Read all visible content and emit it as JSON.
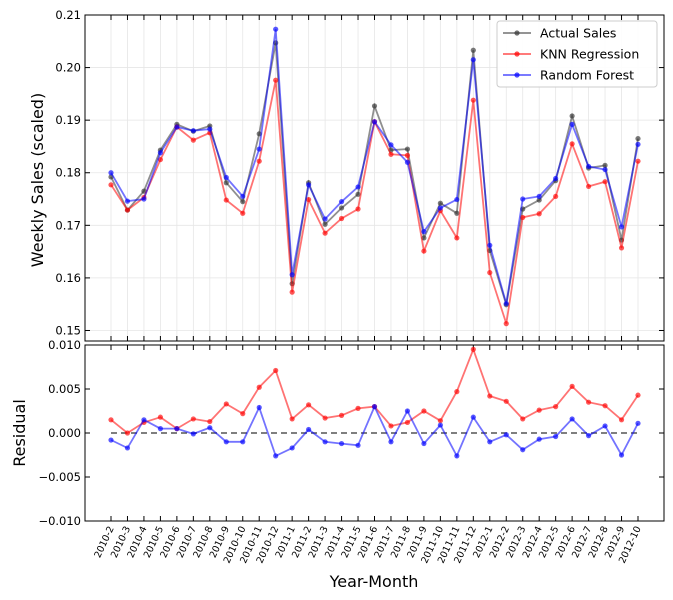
{
  "chart_data": [
    {
      "type": "line",
      "ylabel": "Weekly Sales (scaled)",
      "ylim": [
        0.148,
        0.21
      ],
      "yticks": [
        0.15,
        0.16,
        0.17,
        0.18,
        0.19,
        0.2,
        0.21
      ],
      "ytick_labels": [
        "0.15",
        "0.16",
        "0.17",
        "0.18",
        "0.19",
        "0.20",
        "0.21"
      ],
      "grid": true,
      "legend_position": "top-right",
      "categories": [
        "2010-2",
        "2010-3",
        "2010-4",
        "2010-5",
        "2010-6",
        "2010-7",
        "2010-8",
        "2010-9",
        "2010-10",
        "2010-11",
        "2010-12",
        "2011-1",
        "2011-2",
        "2011-3",
        "2011-4",
        "2011-5",
        "2011-6",
        "2011-7",
        "2011-8",
        "2011-9",
        "2011-10",
        "2011-11",
        "2011-12",
        "2012-1",
        "2012-2",
        "2012-3",
        "2012-4",
        "2012-5",
        "2012-6",
        "2012-7",
        "2012-8",
        "2012-9",
        "2012-10"
      ],
      "series": [
        {
          "name": "Actual Sales",
          "color": "#333333",
          "values": [
            0.1792,
            0.1729,
            0.1765,
            0.1843,
            0.1892,
            0.1879,
            0.1889,
            0.1781,
            0.1745,
            0.1874,
            0.2047,
            0.1589,
            0.1781,
            0.1702,
            0.1733,
            0.1759,
            0.1927,
            0.1843,
            0.1845,
            0.1676,
            0.1742,
            0.1723,
            0.2033,
            0.1652,
            0.1549,
            0.1731,
            0.1748,
            0.1785,
            0.1908,
            0.1809,
            0.1814,
            0.1672,
            0.1865
          ]
        },
        {
          "name": "KNN Regression",
          "color": "#ff0000",
          "values": [
            0.1777,
            0.1729,
            0.1753,
            0.1825,
            0.1887,
            0.1862,
            0.1876,
            0.1748,
            0.1723,
            0.1822,
            0.1976,
            0.1573,
            0.1749,
            0.1685,
            0.1713,
            0.1731,
            0.1897,
            0.1835,
            0.1833,
            0.1651,
            0.1728,
            0.1676,
            0.1938,
            0.161,
            0.1513,
            0.1715,
            0.1722,
            0.1755,
            0.1855,
            0.1774,
            0.1783,
            0.1657,
            0.1822
          ]
        },
        {
          "name": "Random Forest",
          "color": "#0000ff",
          "values": [
            0.18,
            0.1746,
            0.175,
            0.1838,
            0.1887,
            0.188,
            0.1883,
            0.1791,
            0.1755,
            0.1845,
            0.2073,
            0.1606,
            0.1777,
            0.1712,
            0.1745,
            0.1773,
            0.1897,
            0.1853,
            0.182,
            0.1688,
            0.1733,
            0.1749,
            0.2015,
            0.1662,
            0.1551,
            0.175,
            0.1755,
            0.1789,
            0.1892,
            0.1812,
            0.1806,
            0.1697,
            0.1854
          ]
        }
      ]
    },
    {
      "type": "line",
      "xlabel": "Year-Month",
      "ylabel": "Residual",
      "ylim": [
        -0.01,
        0.01
      ],
      "yticks": [
        -0.01,
        -0.005,
        0.0,
        0.005,
        0.01
      ],
      "ytick_labels": [
        "−0.010",
        "−0.005",
        "0.000",
        "0.005",
        "0.010"
      ],
      "zero_line": true,
      "categories": [
        "2010-2",
        "2010-3",
        "2010-4",
        "2010-5",
        "2010-6",
        "2010-7",
        "2010-8",
        "2010-9",
        "2010-10",
        "2010-11",
        "2010-12",
        "2011-1",
        "2011-2",
        "2011-3",
        "2011-4",
        "2011-5",
        "2011-6",
        "2011-7",
        "2011-8",
        "2011-9",
        "2011-10",
        "2011-11",
        "2011-12",
        "2012-1",
        "2012-2",
        "2012-3",
        "2012-4",
        "2012-5",
        "2012-6",
        "2012-7",
        "2012-8",
        "2012-9",
        "2012-10"
      ],
      "series": [
        {
          "color": "#ff0000",
          "values": [
            0.0015,
            0.0,
            0.0012,
            0.0018,
            0.0005,
            0.0016,
            0.0013,
            0.0033,
            0.0022,
            0.0052,
            0.0071,
            0.0016,
            0.0032,
            0.0017,
            0.002,
            0.0028,
            0.003,
            0.0008,
            0.0012,
            0.0025,
            0.0014,
            0.0047,
            0.0095,
            0.0042,
            0.0036,
            0.0016,
            0.0026,
            0.003,
            0.0053,
            0.0035,
            0.0031,
            0.0015,
            0.0043
          ]
        },
        {
          "color": "#0000ff",
          "values": [
            -0.0008,
            -0.0017,
            0.0015,
            0.0005,
            0.0005,
            -0.0001,
            0.0006,
            -0.001,
            -0.001,
            0.0029,
            -0.0026,
            -0.0017,
            0.0004,
            -0.001,
            -0.0012,
            -0.0014,
            0.003,
            -0.001,
            0.0025,
            -0.0012,
            0.0009,
            -0.0026,
            0.0018,
            -0.001,
            -0.0002,
            -0.0019,
            -0.0007,
            -0.0004,
            0.0016,
            -0.0003,
            0.0008,
            -0.0025,
            0.0011
          ]
        }
      ]
    }
  ]
}
